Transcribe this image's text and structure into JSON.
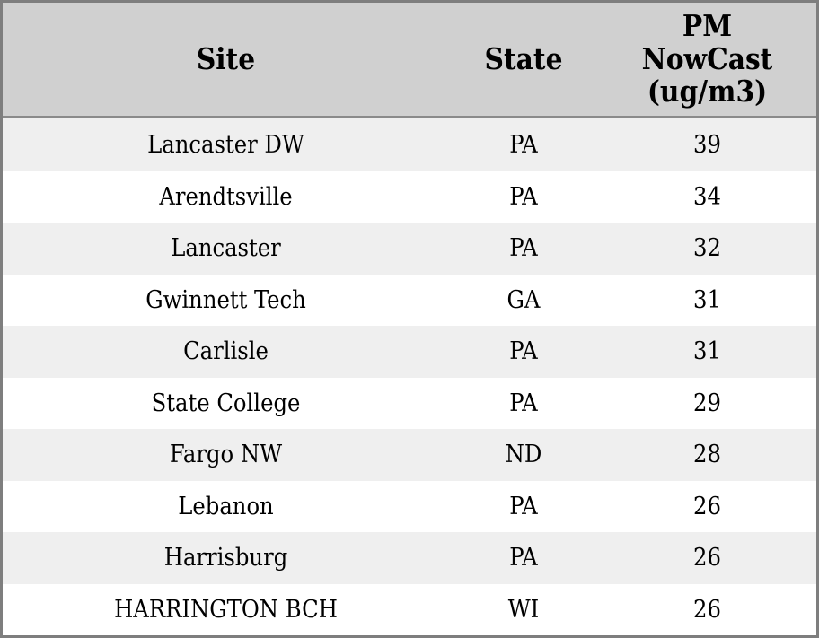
{
  "chart_data": {
    "type": "table",
    "title": "",
    "columns": [
      "Site",
      "State",
      "PM NowCast (ug/m3)"
    ],
    "rows": [
      [
        "Lancaster DW",
        "PA",
        39
      ],
      [
        "Arendtsville",
        "PA",
        34
      ],
      [
        "Lancaster",
        "PA",
        32
      ],
      [
        "Gwinnett Tech",
        "GA",
        31
      ],
      [
        "Carlisle",
        "PA",
        31
      ],
      [
        "State College",
        "PA",
        29
      ],
      [
        "Fargo NW",
        "ND",
        28
      ],
      [
        "Lebanon",
        "PA",
        26
      ],
      [
        "Harrisburg",
        "PA",
        26
      ],
      [
        "HARRINGTON BCH",
        "WI",
        26
      ]
    ]
  },
  "colors": {
    "border": "#7e7e7e",
    "header-bg": "#d0d0d0",
    "header-sep": "#8a8a8a",
    "row-odd": "#efefef",
    "row-even": "#ffffff",
    "text": "#000000"
  }
}
